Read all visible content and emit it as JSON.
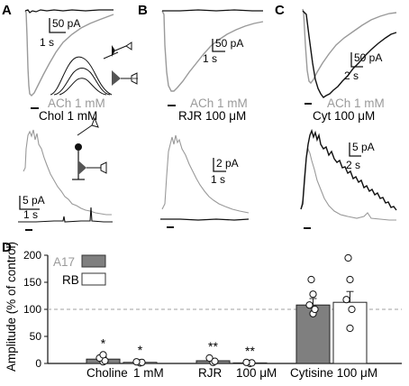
{
  "panels": {
    "A": {
      "letter": "A",
      "legend_gray": "ACh 1 mM",
      "legend_black": "Chol 1 mM",
      "top_scale_current": "50 pA",
      "top_scale_time": "1 s",
      "bottom_scale_current": "5 pA",
      "bottom_scale_time": "1 s"
    },
    "B": {
      "letter": "B",
      "legend_gray": "ACh 1 mM",
      "legend_black": "RJR 100 μM",
      "top_scale_current": "50 pA",
      "top_scale_time": "1 s",
      "bottom_scale_current": "2 pA",
      "bottom_scale_time": "1 s"
    },
    "C": {
      "letter": "C",
      "legend_gray": "ACh 1 mM",
      "legend_black": "Cyt 100 μM",
      "top_scale_current": "50 pA",
      "top_scale_time": "2 s",
      "bottom_scale_current": "5 pA",
      "bottom_scale_time": "2 s"
    },
    "D": {
      "letter": "D"
    }
  },
  "colors": {
    "ach_trace": "#9a9a9a",
    "test_trace": "#111111",
    "a17_bar": "#7f7f7f",
    "rb_bar": "#ffffff",
    "dashed_line": "#a0a0a0"
  },
  "chart_data": {
    "type": "bar",
    "ylabel": "Amplitude (% of control)",
    "ylim": [
      0,
      200
    ],
    "yticks": [
      "0",
      "50",
      "100",
      "150",
      "200"
    ],
    "reference_line": 100,
    "legend": {
      "position": "top-left",
      "items": [
        "A17",
        "RB"
      ]
    },
    "group_labels": [
      "Choline",
      "1 mM",
      "RJR",
      "100 μM",
      "Cytisine 100 μM"
    ],
    "categories": [
      "Choline 1 mM",
      "RJR 100 μM",
      "Cytisine 100 μM"
    ],
    "series": [
      {
        "name": "A17",
        "values": [
          8,
          5,
          108
        ],
        "sem": [
          4,
          3,
          12
        ]
      },
      {
        "name": "RB",
        "values": [
          2,
          1,
          113
        ],
        "sem": [
          1.5,
          1,
          20
        ]
      }
    ],
    "points": {
      "A17": [
        [
          3,
          5,
          10,
          16
        ],
        [
          2,
          4,
          10
        ],
        [
          92,
          100,
          108,
          128,
          155
        ]
      ],
      "RB": [
        [
          1,
          2,
          3
        ],
        [
          0,
          1,
          2
        ],
        [
          65,
          100,
          118,
          155,
          195
        ]
      ]
    },
    "significance": {
      "A17": [
        "*",
        "**",
        ""
      ],
      "RB": [
        "*",
        "**",
        ""
      ]
    }
  }
}
